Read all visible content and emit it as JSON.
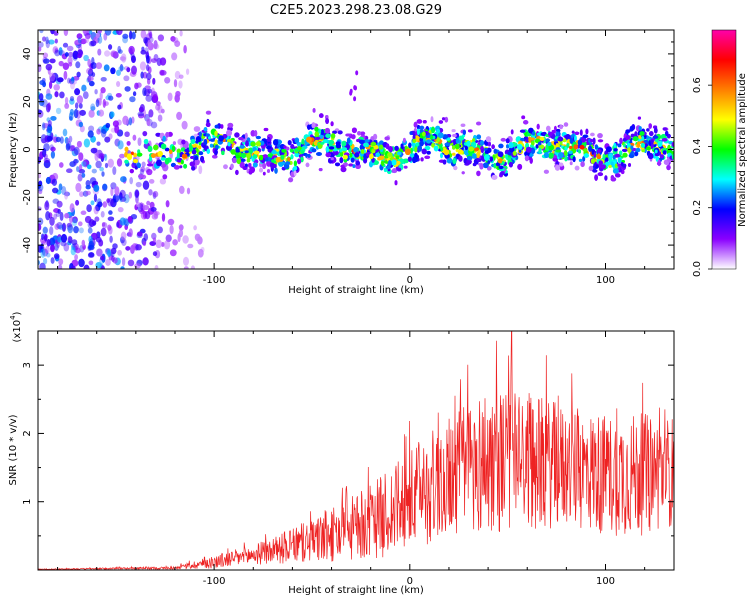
{
  "title": "C2E5.2023.298.23.08.G29",
  "chart_data": [
    {
      "type": "heatmap",
      "title": "C2E5.2023.298.23.08.G29",
      "xlabel": "Height of straight line (km)",
      "ylabel": "Frequency (Hz)",
      "xlim": [
        -190,
        135
      ],
      "ylim": [
        -50,
        50
      ],
      "xticks": [
        -100,
        0,
        100
      ],
      "xtick_labels": [
        "-100",
        "0",
        "100"
      ],
      "yticks": [
        -40,
        -20,
        0,
        20,
        40
      ],
      "ytick_labels": [
        "-40",
        "-20",
        "0",
        "20",
        "40"
      ],
      "colorbar": {
        "label": "Normalized spectral amplitude",
        "range": [
          0,
          0.78
        ],
        "ticks": [
          0,
          0.2,
          0.4,
          0.6
        ],
        "tick_labels": [
          "0.0",
          "0.2",
          "0.4",
          "0.6"
        ],
        "colors": [
          "#ffffff",
          "#8a00ff",
          "#0000ff",
          "#00ffff",
          "#00ff00",
          "#ffff00",
          "#ff7f00",
          "#ff0000",
          "#ff00aa"
        ]
      },
      "signal_band": {
        "center_frequency_hz": 0,
        "half_width_hz": 7,
        "x_start_km": -145,
        "x_end_km": 135,
        "note_feature": {
          "x_km": -28,
          "frequency_hz": 25
        }
      },
      "noise_region": {
        "x_start_km": -190,
        "x_end_km": -120,
        "frequency_range_hz": [
          -50,
          50
        ]
      }
    },
    {
      "type": "line",
      "xlabel": "Height of straight line (km)",
      "ylabel": "SNR (10 * v/v)",
      "y_multiplier_label": "(x10",
      "y_multiplier_exp": "4",
      "xlim": [
        -190,
        135
      ],
      "ylim": [
        0,
        3.5
      ],
      "xticks": [
        -100,
        0,
        100
      ],
      "xtick_labels": [
        "-100",
        "0",
        "100"
      ],
      "yticks": [
        1,
        2,
        3
      ],
      "ytick_labels": [
        "1",
        "2",
        "3"
      ],
      "color": "#ee2222",
      "envelope": {
        "x": [
          -190,
          -120,
          -100,
          -80,
          -60,
          -40,
          -20,
          0,
          20,
          40,
          60,
          80,
          100,
          120,
          135
        ],
        "mean": [
          0.01,
          0.03,
          0.12,
          0.22,
          0.35,
          0.5,
          0.7,
          1.0,
          1.4,
          1.6,
          1.6,
          1.5,
          1.4,
          1.4,
          1.45
        ],
        "spread": [
          0.005,
          0.02,
          0.1,
          0.15,
          0.25,
          0.4,
          0.55,
          0.75,
          0.9,
          1.1,
          1.0,
          0.9,
          0.9,
          0.9,
          0.8
        ],
        "peak": {
          "x": 52,
          "y": 3.5
        }
      }
    }
  ]
}
